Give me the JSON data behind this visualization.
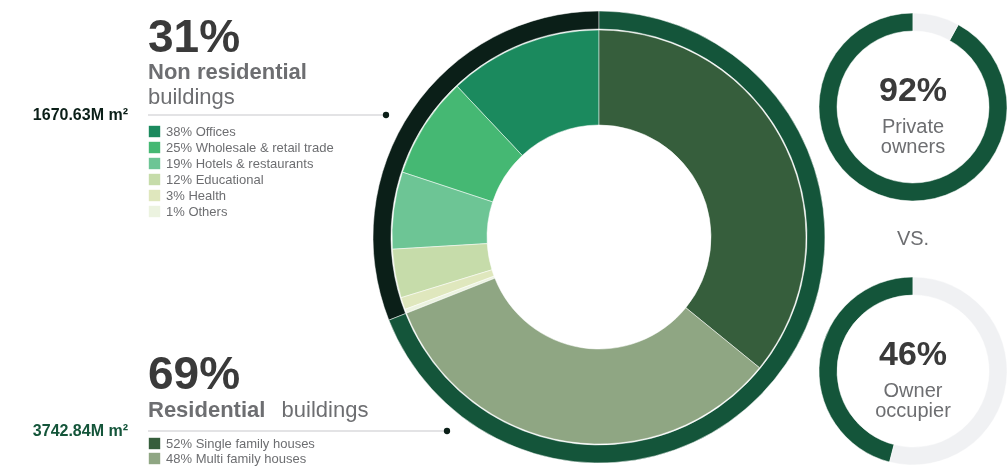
{
  "chart_data": [
    {
      "type": "donut",
      "categories": [
        "Non residential buildings",
        "Residential buildings"
      ],
      "values": [
        31,
        69
      ],
      "colors": [
        "#0b1f18",
        "#14553a"
      ],
      "value_labels": [
        "31%",
        "69%"
      ],
      "annotations": [
        "1670.63M m²",
        "3742.84M m²"
      ]
    },
    {
      "type": "donut",
      "categories": [
        "Offices",
        "Wholesale & retail trade",
        "Hotels & restaurants",
        "Educational",
        "Health",
        "Others"
      ],
      "values": [
        38,
        25,
        19,
        12,
        3,
        1
      ],
      "colors": [
        "#1b8a5e",
        "#45b873",
        "#6dc595",
        "#c6dcaa",
        "#dfe7bd",
        "#ecf3e0"
      ],
      "value_labels": [
        "38%",
        "25%",
        "19%",
        "12%",
        "3%",
        "1%"
      ],
      "legend": "left"
    },
    {
      "type": "donut",
      "categories": [
        "Single family houses",
        "Multi family houses"
      ],
      "values": [
        52,
        48
      ],
      "colors": [
        "#365e3c",
        "#8fa683"
      ],
      "value_labels": [
        "52%",
        "48%"
      ],
      "legend": "left"
    },
    {
      "type": "donut",
      "categories": [
        "Private owners",
        null
      ],
      "values": [
        92,
        8
      ],
      "colors": [
        "#14553a",
        "#f0f1f3"
      ],
      "value_labels": [
        "92%",
        null
      ]
    },
    {
      "type": "donut",
      "categories": [
        "Owner occupier",
        null
      ],
      "values": [
        46,
        54
      ],
      "colors": [
        "#14553a",
        "#f0f1f3"
      ],
      "value_labels": [
        "46%",
        null
      ],
      "annotations": [
        "VS."
      ]
    }
  ]
}
